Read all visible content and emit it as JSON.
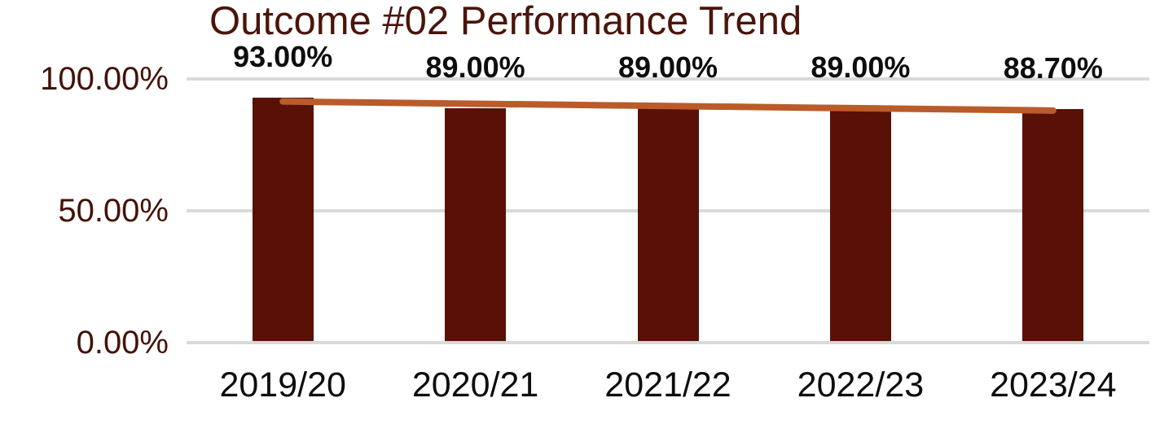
{
  "title": "Outcome #02 Performance Trend",
  "colors": {
    "background": "#FFFFFF",
    "bar": "#591107",
    "trendline": "#BA5B2A",
    "gridline": "#D9D9D9",
    "title_text": "#4A150B",
    "y_tick_text": "#451208",
    "x_tick_text": "#0D0D0D",
    "data_label_text": "#0D0D0D"
  },
  "chart_data": {
    "type": "bar",
    "title": "Outcome #02 Performance Trend",
    "categories": [
      "2019/20",
      "2020/21",
      "2021/22",
      "2022/23",
      "2023/24"
    ],
    "values": [
      93.0,
      89.0,
      89.0,
      89.0,
      88.7
    ],
    "data_labels": [
      "93.00%",
      "89.00%",
      "89.00%",
      "89.00%",
      "88.70%"
    ],
    "y_ticks": [
      {
        "value": 0,
        "label": "0.00%"
      },
      {
        "value": 50,
        "label": "50.00%"
      },
      {
        "value": 100,
        "label": "100.00%"
      }
    ],
    "ylim": [
      0,
      100
    ],
    "xlabel": "",
    "ylabel": "",
    "grid": "horizontal-only",
    "legend": "none",
    "bar_color": "#591107",
    "trendline": {
      "type": "linear",
      "over_series": "values",
      "color": "#BA5B2A"
    }
  }
}
